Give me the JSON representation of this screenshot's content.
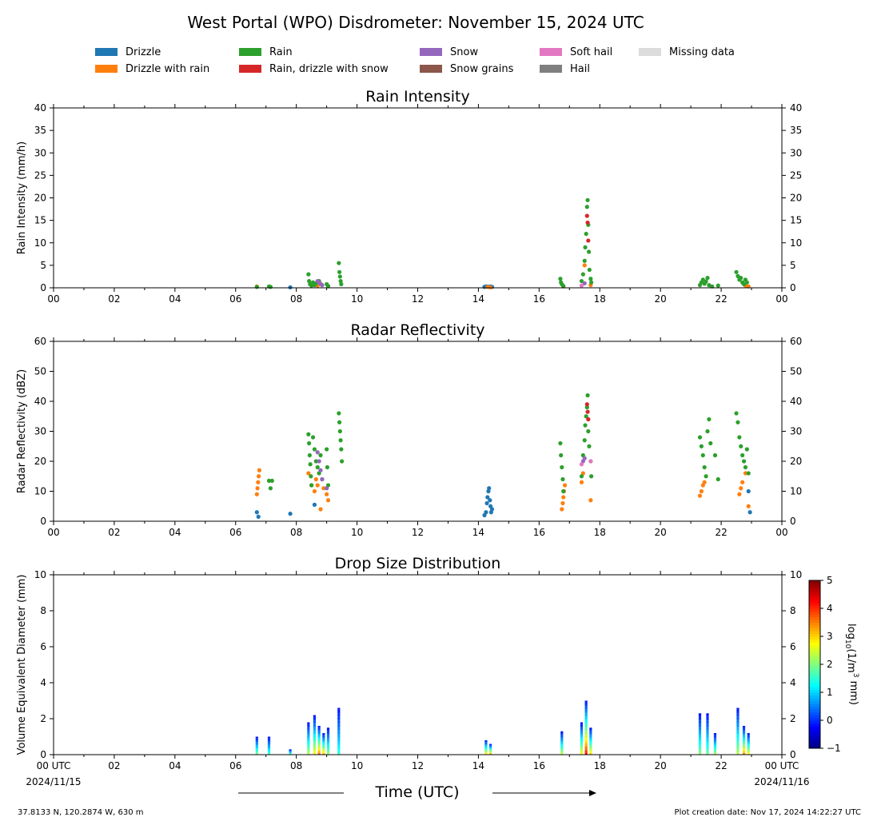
{
  "title": "West Portal (WPO) Disdrometer: November 15, 2024 UTC",
  "legend": [
    {
      "label": "Drizzle",
      "color": "#1f77b4"
    },
    {
      "label": "Drizzle with rain",
      "color": "#ff7f0e"
    },
    {
      "label": "Rain",
      "color": "#2ca02c"
    },
    {
      "label": "Rain, drizzle with snow",
      "color": "#d62728"
    },
    {
      "label": "Snow",
      "color": "#9467bd"
    },
    {
      "label": "Snow grains",
      "color": "#8c564b"
    },
    {
      "label": "Soft hail",
      "color": "#e377c2"
    },
    {
      "label": "Hail",
      "color": "#7f7f7f"
    },
    {
      "label": "Missing data",
      "color": "#dcdcdc"
    }
  ],
  "x_tick_labels": [
    "00",
    "02",
    "04",
    "06",
    "08",
    "10",
    "12",
    "14",
    "16",
    "18",
    "20",
    "22",
    "00"
  ],
  "x_first_label": "00 UTC",
  "x_last_label": "00 UTC",
  "x_first_date": "2024/11/15",
  "x_last_date": "2024/11/16",
  "xlabel": "Time (UTC)",
  "footer_left": "37.8133 N, 120.2874 W, 630 m",
  "footer_right": "Plot creation date: Nov 17, 2024 14:22:27 UTC",
  "chart_data": [
    {
      "type": "scatter",
      "title": "Rain Intensity",
      "ylabel": "Rain Intensity (mm/h)",
      "xlim": [
        0,
        24
      ],
      "ylim": [
        0,
        40
      ],
      "yticks": [
        0,
        5,
        10,
        15,
        20,
        25,
        30,
        35,
        40
      ],
      "series": [
        {
          "name": "Drizzle",
          "color": "#1f77b4",
          "x": [
            7.8,
            14.2,
            14.25,
            14.3,
            14.35,
            14.4,
            14.45
          ],
          "y": [
            0.1,
            0.2,
            0.3,
            0.3,
            0.2,
            0.3,
            0.2
          ]
        },
        {
          "name": "Drizzle with rain",
          "color": "#ff7f0e",
          "x": [
            6.7,
            8.6,
            8.7,
            8.8,
            14.3,
            14.4,
            16.8,
            17.5,
            17.7,
            22.8,
            22.9
          ],
          "y": [
            0.3,
            0.8,
            0.5,
            0.9,
            0.2,
            0.1,
            0.3,
            5,
            0.6,
            0.5,
            0.3
          ]
        },
        {
          "name": "Rain",
          "color": "#2ca02c",
          "x": [
            6.7,
            7.1,
            7.15,
            8.4,
            8.42,
            8.45,
            8.5,
            8.55,
            8.6,
            8.65,
            8.75,
            9.0,
            9.05,
            9.4,
            9.42,
            9.44,
            9.46,
            9.48,
            16.7,
            16.72,
            16.75,
            16.8,
            17.4,
            17.45,
            17.5,
            17.52,
            17.55,
            17.58,
            17.6,
            17.62,
            17.64,
            17.66,
            17.7,
            17.72,
            21.3,
            21.35,
            21.4,
            21.45,
            21.5,
            21.55,
            21.6,
            21.7,
            21.9,
            22.5,
            22.55,
            22.6,
            22.65,
            22.7,
            22.75,
            22.8,
            22.85
          ],
          "y": [
            0.2,
            0.3,
            0.2,
            3,
            1.5,
            0.8,
            0.5,
            1.2,
            0.6,
            1.0,
            1.5,
            0.8,
            0.4,
            5.5,
            3.5,
            2.5,
            1.5,
            0.8,
            2,
            1.2,
            0.8,
            0.4,
            1.5,
            3,
            6,
            9,
            12,
            18,
            19.5,
            14,
            8,
            4,
            2,
            1.2,
            0.6,
            1.2,
            1.8,
            0.9,
            1.4,
            2.2,
            0.6,
            0.3,
            0.5,
            3.5,
            2.6,
            1.8,
            2.2,
            1.2,
            0.8,
            1.8,
            1.2
          ]
        },
        {
          "name": "Rain, drizzle with snow",
          "color": "#d62728",
          "x": [
            17.58,
            17.6,
            17.62
          ],
          "y": [
            16,
            14.5,
            10.5
          ]
        },
        {
          "name": "Snow",
          "color": "#9467bd",
          "x": [
            8.7,
            8.75,
            8.8,
            8.85,
            17.5
          ],
          "y": [
            1.5,
            1.2,
            0.8,
            0.6,
            1.0
          ]
        },
        {
          "name": "Soft hail",
          "color": "#e377c2",
          "x": [
            17.4
          ],
          "y": [
            0.5
          ]
        }
      ]
    },
    {
      "type": "scatter",
      "title": "Radar Reflectivity",
      "ylabel": "Radar Reflectivity (dBZ)",
      "xlim": [
        0,
        24
      ],
      "ylim": [
        0,
        60
      ],
      "yticks": [
        0,
        10,
        20,
        30,
        40,
        50,
        60
      ],
      "series": [
        {
          "name": "Drizzle",
          "color": "#1f77b4",
          "x": [
            6.7,
            6.75,
            7.8,
            8.6,
            14.2,
            14.25,
            14.28,
            14.3,
            14.33,
            14.35,
            14.38,
            14.4,
            14.42,
            14.45,
            22.9,
            22.95
          ],
          "y": [
            3,
            1.5,
            2.5,
            5.5,
            2,
            3,
            6,
            8,
            10,
            11,
            7,
            5,
            3,
            4,
            10,
            3
          ]
        },
        {
          "name": "Drizzle with rain",
          "color": "#ff7f0e",
          "x": [
            6.7,
            6.72,
            6.74,
            6.76,
            6.78,
            8.4,
            8.5,
            8.6,
            8.65,
            8.7,
            8.8,
            8.9,
            9.0,
            9.05,
            16.75,
            16.78,
            16.8,
            16.82,
            16.85,
            17.4,
            17.45,
            17.7,
            21.3,
            21.35,
            21.4,
            21.45,
            22.6,
            22.65,
            22.7,
            22.8,
            22.9
          ],
          "y": [
            9,
            11,
            13,
            15,
            17,
            16,
            12,
            10,
            14,
            12,
            4,
            11,
            9,
            7,
            4,
            6,
            8,
            10,
            12,
            13,
            16,
            7,
            8.5,
            10,
            12,
            13,
            9,
            11,
            13,
            16,
            5
          ]
        },
        {
          "name": "Rain",
          "color": "#2ca02c",
          "x": [
            7.1,
            7.15,
            7.2,
            8.4,
            8.42,
            8.44,
            8.46,
            8.48,
            8.5,
            8.55,
            8.6,
            8.65,
            8.7,
            8.75,
            8.8,
            8.85,
            9.0,
            9.02,
            9.05,
            9.4,
            9.42,
            9.44,
            9.46,
            9.48,
            9.5,
            16.7,
            16.72,
            16.75,
            16.78,
            16.8,
            17.4,
            17.45,
            17.5,
            17.52,
            17.55,
            17.58,
            17.6,
            17.62,
            17.65,
            17.7,
            17.72,
            21.3,
            21.35,
            21.4,
            21.45,
            21.5,
            21.55,
            21.6,
            21.65,
            21.8,
            21.9,
            22.5,
            22.55,
            22.6,
            22.65,
            22.7,
            22.75,
            22.8,
            22.85,
            22.9
          ],
          "y": [
            13.5,
            11,
            13.5,
            29,
            26,
            22,
            19,
            15,
            12,
            28,
            24,
            20,
            18,
            16,
            22,
            14,
            24,
            18,
            12,
            36,
            33,
            30,
            27,
            24,
            20,
            26,
            22,
            18,
            14,
            10,
            15,
            22,
            27,
            32,
            35,
            38,
            42,
            30,
            25,
            20,
            15,
            28,
            25,
            22,
            18,
            15,
            30,
            34,
            26,
            22,
            14,
            36,
            33,
            28,
            25,
            22,
            20,
            18,
            24,
            16
          ]
        },
        {
          "name": "Rain, drizzle with snow",
          "color": "#d62728",
          "x": [
            17.58,
            17.6,
            17.62
          ],
          "y": [
            39,
            36.5,
            34
          ]
        },
        {
          "name": "Snow",
          "color": "#9467bd",
          "x": [
            8.7,
            8.75,
            8.8,
            8.85,
            9.0,
            17.45,
            17.5
          ],
          "y": [
            23,
            20,
            17,
            14,
            11,
            20,
            21
          ]
        },
        {
          "name": "Soft hail",
          "color": "#e377c2",
          "x": [
            17.4,
            17.7
          ],
          "y": [
            19,
            20
          ]
        }
      ]
    },
    {
      "type": "heatmap",
      "title": "Drop Size Distribution",
      "ylabel": "Volume Equivalent Diameter (mm)",
      "xlim": [
        0,
        24
      ],
      "ylim": [
        0,
        10
      ],
      "yticks": [
        0,
        2,
        4,
        6,
        8,
        10
      ],
      "colorbar_label": "log10(1/m3 mm)",
      "colorbar_ticks": [
        -1,
        0,
        1,
        2,
        3,
        4,
        5
      ],
      "clim": [
        -1,
        5
      ],
      "columns": [
        {
          "x": 6.7,
          "top": 1.0,
          "peak": 2.2
        },
        {
          "x": 7.1,
          "top": 1.0,
          "peak": 1.8
        },
        {
          "x": 7.8,
          "top": 0.3,
          "peak": 2.0
        },
        {
          "x": 8.4,
          "top": 1.8,
          "peak": 2.5
        },
        {
          "x": 8.6,
          "top": 2.2,
          "peak": 3.0
        },
        {
          "x": 8.75,
          "top": 1.6,
          "peak": 3.8
        },
        {
          "x": 8.9,
          "top": 1.2,
          "peak": 3.4
        },
        {
          "x": 9.05,
          "top": 1.5,
          "peak": 2.3
        },
        {
          "x": 9.4,
          "top": 2.6,
          "peak": 1.6
        },
        {
          "x": 14.25,
          "top": 0.8,
          "peak": 3.2
        },
        {
          "x": 14.4,
          "top": 0.6,
          "peak": 3.6
        },
        {
          "x": 16.75,
          "top": 1.3,
          "peak": 2.6
        },
        {
          "x": 17.4,
          "top": 1.8,
          "peak": 3.0
        },
        {
          "x": 17.55,
          "top": 3.0,
          "peak": 4.4
        },
        {
          "x": 17.7,
          "top": 1.5,
          "peak": 3.2
        },
        {
          "x": 21.3,
          "top": 2.3,
          "peak": 2.2
        },
        {
          "x": 21.55,
          "top": 2.3,
          "peak": 2.0
        },
        {
          "x": 21.8,
          "top": 1.2,
          "peak": 2.4
        },
        {
          "x": 22.55,
          "top": 2.6,
          "peak": 2.5
        },
        {
          "x": 22.75,
          "top": 1.6,
          "peak": 3.6
        },
        {
          "x": 22.9,
          "top": 1.2,
          "peak": 3.0
        }
      ]
    }
  ]
}
